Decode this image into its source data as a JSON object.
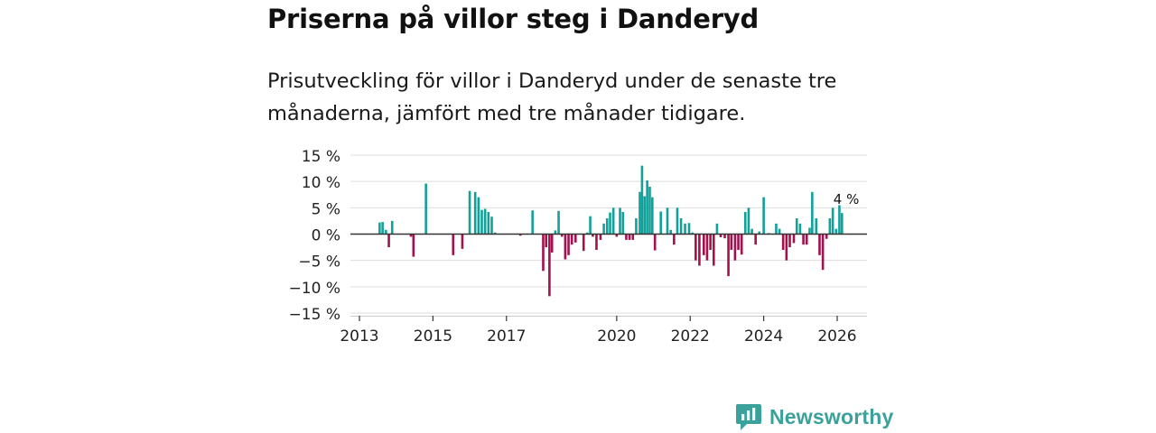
{
  "title": "Priserna på villor steg i Danderyd",
  "subtitle": "Prisutveckling för villor i Danderyd under de senaste tre månaderna, jämfört med tre månader tidigare.",
  "brand": "Newsworthy",
  "colors": {
    "positive": "#12a19a",
    "negative": "#a3124d",
    "brand": "#3aa19b"
  },
  "chart_data": {
    "type": "bar",
    "title": "Priserna på villor steg i Danderyd",
    "xlabel": "",
    "ylabel": "",
    "ylim": [
      -15,
      15
    ],
    "xlim": [
      2013,
      2026.75
    ],
    "yticks": [
      15,
      10,
      5,
      0,
      -5,
      -10,
      -15
    ],
    "ytick_labels": [
      "15 %",
      "10 %",
      "5 %",
      "0 %",
      "−5 %",
      "−10 %",
      "−15 %"
    ],
    "xticks": [
      2013,
      2015,
      2017,
      2020,
      2022,
      2024,
      2026
    ],
    "xtick_labels": [
      "2013",
      "2015",
      "2017",
      "2020",
      "2022",
      "2024",
      "2026"
    ],
    "annotation": {
      "x": 2026.1,
      "y": 4,
      "text": "4 %"
    },
    "series": [
      {
        "name": "Prisutveckling",
        "x": [
          2013.55,
          2013.63,
          2013.72,
          2013.8,
          2013.89,
          2014.4,
          2014.47,
          2014.81,
          2015.55,
          2015.8,
          2016.0,
          2016.15,
          2016.24,
          2016.33,
          2016.42,
          2016.51,
          2016.6,
          2016.69,
          2017.38,
          2017.71,
          2018.0,
          2018.08,
          2018.17,
          2018.24,
          2018.33,
          2018.42,
          2018.51,
          2018.6,
          2018.69,
          2018.78,
          2018.88,
          2019.1,
          2019.2,
          2019.28,
          2019.35,
          2019.45,
          2019.56,
          2019.65,
          2019.74,
          2019.82,
          2019.91,
          2020.0,
          2020.09,
          2020.17,
          2020.26,
          2020.35,
          2020.44,
          2020.53,
          2020.63,
          2020.69,
          2020.76,
          2020.83,
          2020.9,
          2020.97,
          2021.04,
          2021.2,
          2021.38,
          2021.47,
          2021.56,
          2021.65,
          2021.75,
          2021.86,
          2021.97,
          2022.06,
          2022.15,
          2022.25,
          2022.37,
          2022.46,
          2022.55,
          2022.64,
          2022.73,
          2022.83,
          2022.94,
          2023.04,
          2023.12,
          2023.22,
          2023.31,
          2023.4,
          2023.5,
          2023.59,
          2023.68,
          2023.78,
          2023.88,
          2024.0,
          2024.14,
          2024.34,
          2024.43,
          2024.53,
          2024.62,
          2024.71,
          2024.82,
          2024.9,
          2024.99,
          2025.08,
          2025.17,
          2025.25,
          2025.32,
          2025.43,
          2025.52,
          2025.61,
          2025.71,
          2025.8,
          2025.88,
          2025.97,
          2026.06,
          2026.13
        ],
        "values": [
          2.2,
          2.3,
          0.8,
          -2.5,
          2.5,
          -0.5,
          -4.3,
          9.6,
          -4.0,
          -2.8,
          8.2,
          8.0,
          7.0,
          4.6,
          4.8,
          4.2,
          3.3,
          0.3,
          -0.3,
          4.5,
          -7.0,
          -2.5,
          -11.8,
          -3.5,
          0.7,
          4.4,
          -0.5,
          -4.8,
          -4.0,
          -2.0,
          -1.6,
          -3.2,
          0.3,
          3.4,
          -0.5,
          -3.0,
          -1.1,
          2.0,
          3.0,
          4.1,
          5.0,
          -0.5,
          5.0,
          4.2,
          -1.1,
          -1.1,
          -1.1,
          3.0,
          8.0,
          13.0,
          7.2,
          10.2,
          9.0,
          7.0,
          -3.1,
          4.3,
          5.0,
          0.8,
          -2.0,
          5.0,
          3.0,
          2.0,
          2.1,
          0.3,
          -5.0,
          -6.0,
          -4.0,
          -5.0,
          -3.0,
          -6.0,
          2.0,
          -0.6,
          -0.8,
          -8.0,
          -3.0,
          -5.0,
          -3.0,
          -3.9,
          4.2,
          5.0,
          1.0,
          -2.0,
          0.5,
          7.0,
          0.2,
          2.0,
          1.0,
          -3.0,
          -5.0,
          -2.5,
          -1.7,
          3.0,
          2.0,
          -2.0,
          -2.0,
          1.2,
          8.0,
          3.0,
          -4.0,
          -6.8,
          -0.9,
          3.0,
          5.0,
          1.0,
          5.5,
          4.0
        ]
      }
    ]
  }
}
